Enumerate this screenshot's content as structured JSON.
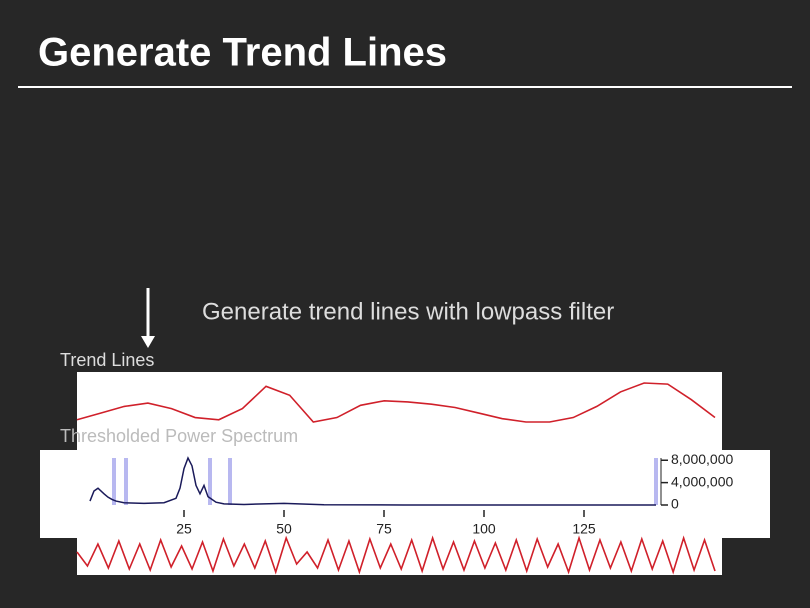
{
  "slide": {
    "title": "Generate Trend Lines",
    "annotation": "Generate trend lines with lowpass filter"
  },
  "chart_data": [
    {
      "type": "line",
      "title": "Trend Lines",
      "color": "#d0202a",
      "values": [
        12,
        18,
        24,
        27,
        22,
        14,
        12,
        22,
        42,
        34,
        10,
        14,
        25,
        29,
        28,
        26,
        23,
        18,
        13,
        10,
        10,
        14,
        24,
        37,
        45,
        44,
        30,
        14
      ]
    },
    {
      "type": "spectrum",
      "title": "Thresholded Power Spectrum",
      "color": "#1a1a5a",
      "highlight_color": "#b8b8f0",
      "x": [
        1.5,
        2.5,
        3.5,
        5,
        6,
        7,
        8,
        10,
        15,
        20,
        23,
        24,
        25,
        26,
        27,
        28,
        29,
        30,
        31,
        33,
        35,
        40,
        50,
        60,
        80,
        100,
        120,
        143
      ],
      "values": [
        700000,
        2500000,
        3000000,
        2000000,
        1400000,
        1000000,
        700000,
        400000,
        300000,
        400000,
        1200000,
        3000000,
        6500000,
        8400000,
        7000000,
        3500000,
        2000000,
        3500000,
        1500000,
        500000,
        200000,
        100000,
        300000,
        50000,
        0,
        0,
        0,
        0
      ],
      "highlight_x": [
        7.5,
        10.5,
        31.5,
        36.5,
        143
      ],
      "xlim": [
        0,
        145
      ],
      "ylim": [
        0,
        8400000
      ],
      "xticks": [
        25,
        50,
        75,
        100,
        125
      ],
      "yticks": [
        {
          "value": 0,
          "label": "0"
        },
        {
          "value": 4000000,
          "label": "4,000,000"
        },
        {
          "value": 8000000,
          "label": "8,000,000"
        }
      ]
    },
    {
      "type": "wave",
      "color": "#d0202a",
      "values": [
        22,
        8,
        30,
        6,
        33,
        5,
        30,
        4,
        34,
        7,
        28,
        5,
        32,
        3,
        35,
        8,
        30,
        6,
        33,
        2,
        36,
        10,
        22,
        6,
        34,
        4,
        33,
        2,
        35,
        6,
        30,
        5,
        34,
        3,
        36,
        5,
        32,
        4,
        33,
        6,
        31,
        4,
        34,
        3,
        35,
        7,
        30,
        2,
        36,
        4,
        34,
        6,
        32,
        3,
        35,
        5,
        33,
        2,
        36,
        4,
        34,
        3
      ]
    }
  ]
}
